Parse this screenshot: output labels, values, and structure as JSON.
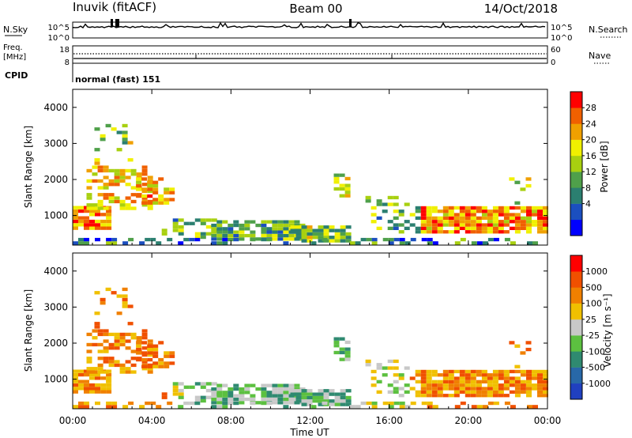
{
  "header": {
    "station": "Inuvik (fitACF)",
    "beam": "Beam 00",
    "date": "14/Oct/2018"
  },
  "top_panels": {
    "nsky_label": "N.Sky",
    "nsky_ticks": [
      "10^5",
      "10^0"
    ],
    "nsearch_label": "N.Search",
    "nsearch_ticks": [
      "10^5",
      "10^0"
    ],
    "freq_label_1": "Freq.",
    "freq_label_2": "[MHz]",
    "freq_ticks": [
      "18",
      "8"
    ],
    "nave_label": "Nave",
    "nave_ticks": [
      "60",
      "0"
    ],
    "cpid_label": "CPID",
    "cpid_value": "normal (fast) 151"
  },
  "colors": {
    "background": "#ffffff",
    "axis": "#000000",
    "ground_scatter": "#b8b8b8"
  },
  "chart_data": [
    {
      "type": "heatmap",
      "quantity": "Power",
      "ylabel": "Slant Range [km]",
      "xlabel": "",
      "ylim": [
        180,
        4500
      ],
      "yticks": [
        "4000",
        "3000",
        "2000",
        "1000"
      ],
      "xlim_hours": [
        0,
        24
      ],
      "colorbar": {
        "label": "Power [dB]",
        "ticks": [
          "28",
          "24",
          "20",
          "16",
          "12",
          "8",
          "4"
        ],
        "colors": [
          "#0000ff",
          "#1b4fbf",
          "#2b7f70",
          "#4fa04a",
          "#a8d010",
          "#f0f000",
          "#f0a000",
          "#f06000",
          "#ff0000"
        ]
      }
    },
    {
      "type": "heatmap",
      "quantity": "Velocity",
      "ylabel": "Slant Range [km]",
      "xlabel": "Time UT",
      "ylim": [
        180,
        4500
      ],
      "yticks": [
        "4000",
        "3000",
        "2000",
        "1000"
      ],
      "xticks": [
        "00:00",
        "04:00",
        "08:00",
        "12:00",
        "16:00",
        "20:00",
        "00:00"
      ],
      "xlim_hours": [
        0,
        24
      ],
      "colorbar": {
        "label": "Velocity [m s⁻¹]",
        "ticks": [
          "1000",
          "500",
          "100",
          "25",
          "-25",
          "-100",
          "-500",
          "-1000"
        ],
        "colors": [
          "#2040c0",
          "#2868a8",
          "#2f8a70",
          "#5cc040",
          "#c8c8c8",
          "#f0c000",
          "#f08000",
          "#f05000",
          "#ff0000"
        ]
      }
    }
  ]
}
